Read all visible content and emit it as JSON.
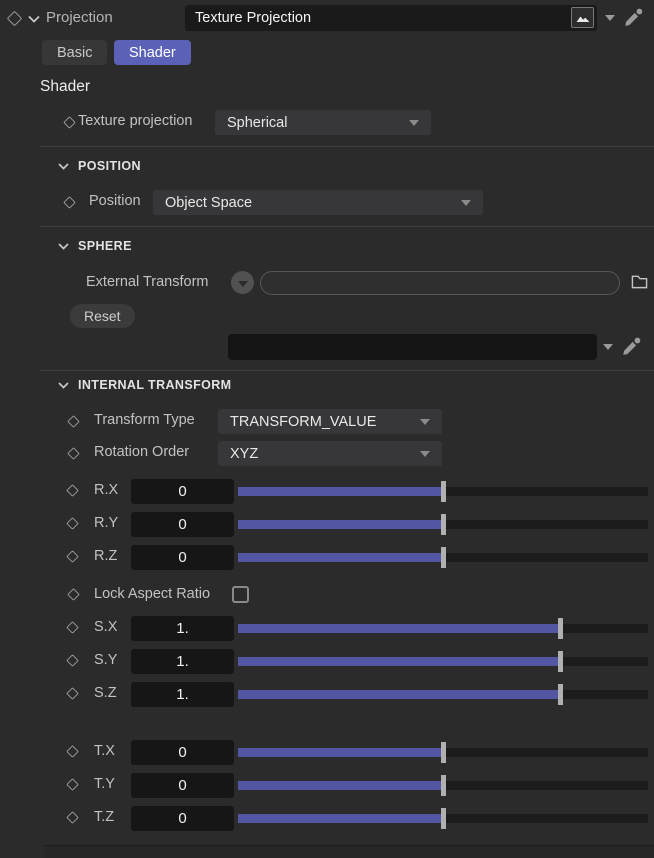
{
  "header": {
    "type_label": "Projection",
    "name_value": "Texture Projection"
  },
  "tabs": {
    "basic": "Basic",
    "shader": "Shader"
  },
  "shader_section": {
    "heading": "Shader",
    "texture_projection_label": "Texture projection",
    "texture_projection_value": "Spherical"
  },
  "position_section": {
    "title": "POSITION",
    "position_label": "Position",
    "position_value": "Object Space"
  },
  "sphere_section": {
    "title": "SPHERE",
    "external_transform_label": "External Transform",
    "external_transform_value": "",
    "reset_label": "Reset",
    "shader_ref_value": ""
  },
  "internal_transform_section": {
    "title": "INTERNAL TRANSFORM",
    "transform_type_label": "Transform Type",
    "transform_type_value": "TRANSFORM_VALUE",
    "rotation_order_label": "Rotation Order",
    "rotation_order_value": "XYZ",
    "lock_aspect_ratio_label": "Lock Aspect Ratio",
    "lock_aspect_ratio_checked": false,
    "slider_groups": [
      {
        "name": "rotate",
        "rows": [
          {
            "label": "R.X",
            "value": "0",
            "fraction": 0.5
          },
          {
            "label": "R.Y",
            "value": "0",
            "fraction": 0.5
          },
          {
            "label": "R.Z",
            "value": "0",
            "fraction": 0.5
          }
        ]
      },
      {
        "name": "scale",
        "rows": [
          {
            "label": "S.X",
            "value": "1.",
            "fraction": 0.785
          },
          {
            "label": "S.Y",
            "value": "1.",
            "fraction": 0.785
          },
          {
            "label": "S.Z",
            "value": "1.",
            "fraction": 0.785
          }
        ]
      },
      {
        "name": "translate",
        "rows": [
          {
            "label": "T.X",
            "value": "0",
            "fraction": 0.5
          },
          {
            "label": "T.Y",
            "value": "0",
            "fraction": 0.5
          },
          {
            "label": "T.Z",
            "value": "0",
            "fraction": 0.5
          }
        ]
      }
    ]
  },
  "colors": {
    "panel_bg": "#2b2b2b",
    "accent": "#5c61b8",
    "slider_fill": "#5356a3"
  }
}
